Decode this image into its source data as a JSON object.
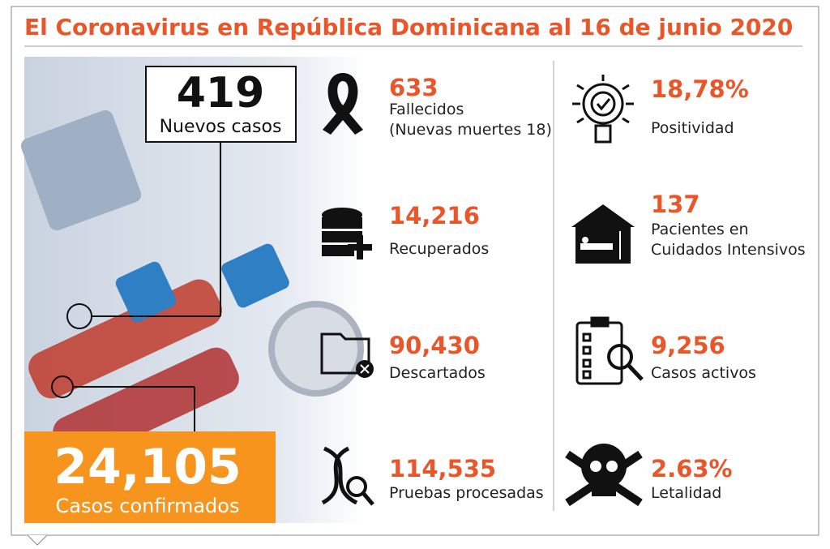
{
  "header": {
    "title": "El Coronavirus en República Dominicana al 16 de junio 2020"
  },
  "highlights": {
    "new_cases": {
      "value": "419",
      "label": "Nuevos casos"
    },
    "confirmed": {
      "value": "24,105",
      "label": "Casos confirmados"
    }
  },
  "stats": [
    {
      "value": "633",
      "label": [
        "Fallecidos",
        "(Nuevas muertes 18)"
      ]
    },
    {
      "value": "14,216",
      "label": [
        "Recuperados"
      ]
    },
    {
      "value": "90,430",
      "label": [
        "Descartados"
      ]
    },
    {
      "value": "114,535",
      "label": [
        "Pruebas procesadas"
      ]
    },
    {
      "value": "18,78%",
      "label": [
        "Positividad"
      ]
    },
    {
      "value": "137",
      "label": [
        "Pacientes en",
        "Cuidados Intensivos"
      ]
    },
    {
      "value": "9,256",
      "label": [
        "Casos activos"
      ]
    },
    {
      "value": "2.63%",
      "label": [
        "Letalidad"
      ]
    }
  ]
}
